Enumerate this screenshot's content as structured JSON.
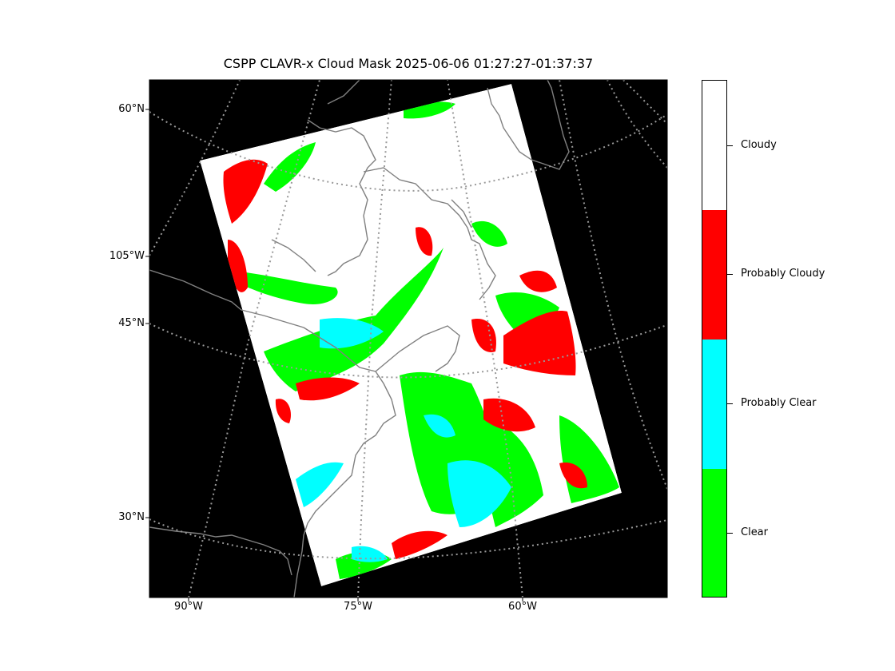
{
  "title": "CSPP CLAVR-x Cloud Mask 2025-06-06 01:27:27-01:37:37",
  "lat_labels": [
    "60°N",
    "105°W",
    "45°N",
    "30°N"
  ],
  "lon_labels": [
    "90°W",
    "75°W",
    "60°W"
  ],
  "colorbar": {
    "categories": [
      {
        "label": "Cloudy",
        "color": "#ffffff"
      },
      {
        "label": "Probably Cloudy",
        "color": "#ff0000"
      },
      {
        "label": "Probably Clear",
        "color": "#00ffff"
      },
      {
        "label": "Clear",
        "color": "#00ff00"
      }
    ]
  },
  "colors": {
    "background": "#000000",
    "coastline": "#808080",
    "graticule": "#999999"
  }
}
